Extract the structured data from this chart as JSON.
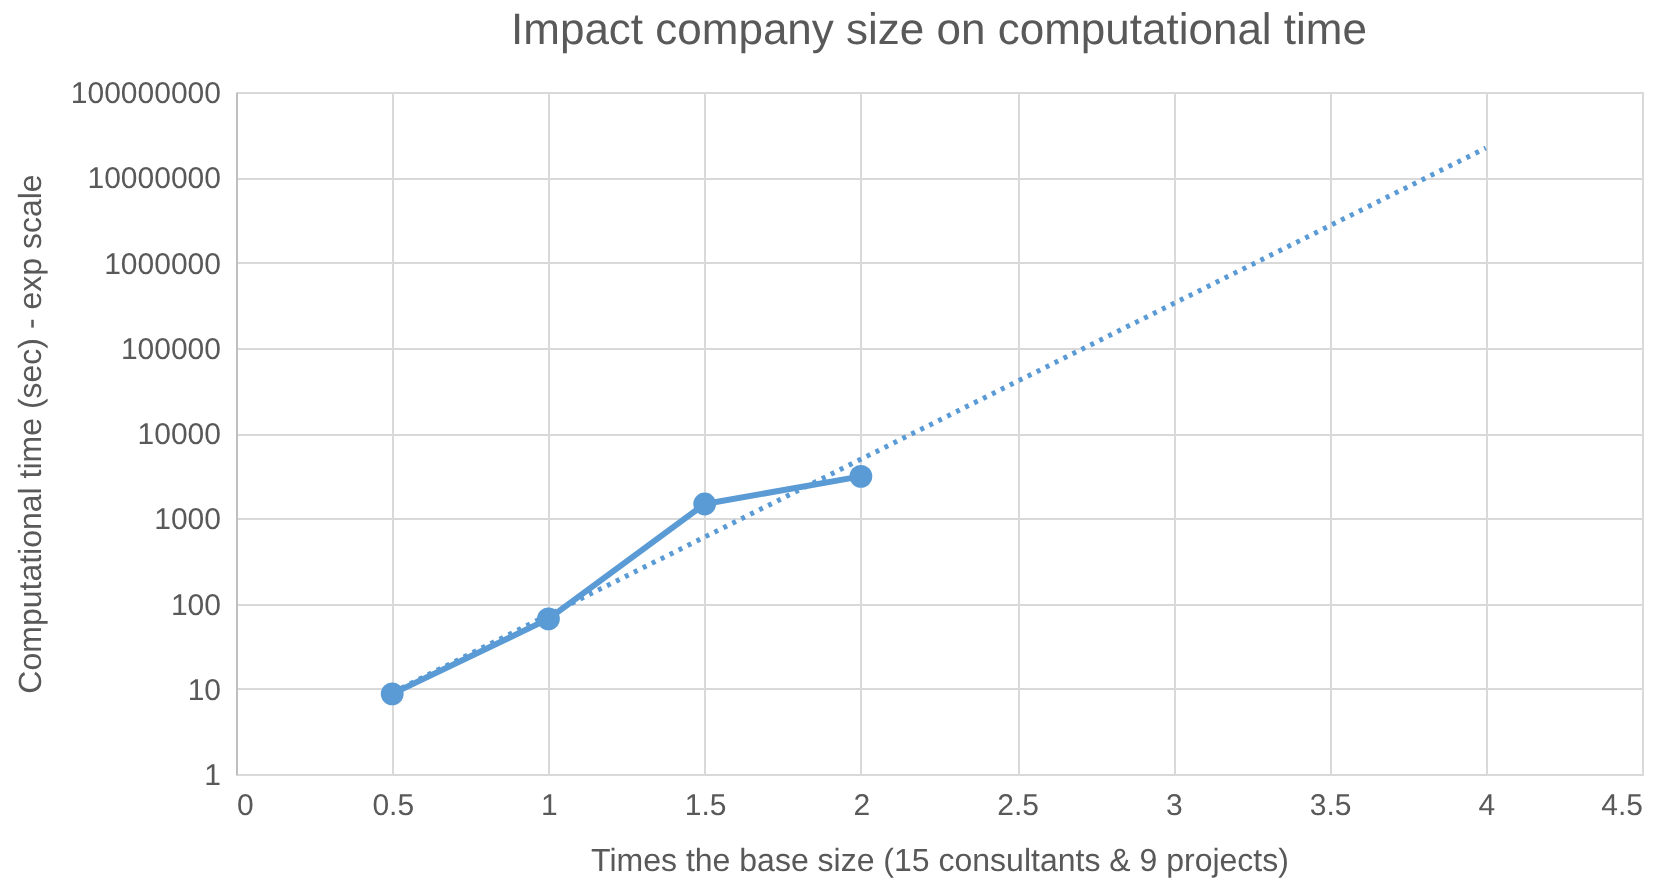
{
  "chart_data": {
    "type": "line",
    "title": "Impact company size on computational time",
    "xlabel": "Times the base size (15 consultants & 9 projects)",
    "ylabel": "Computational time (sec) - exp scale",
    "series": [
      {
        "color": "#5b9bd5",
        "x": [
          0.5,
          1,
          1.5,
          2
        ],
        "values": [
          8.7,
          66,
          1470,
          3100
        ],
        "marker": "circle",
        "line_style": "solid"
      },
      {
        "color": "#5b9bd5",
        "x": [
          0.5,
          4
        ],
        "values": [
          9,
          22000000
        ],
        "line_style": "dotted"
      }
    ],
    "log": "y",
    "xlim": [
      0,
      4.5
    ],
    "xticks": [
      0,
      0.5,
      1,
      1.5,
      2,
      2.5,
      3,
      3.5,
      4,
      4.5
    ],
    "ylim": [
      1,
      100000000
    ],
    "yticks": [
      1,
      10,
      100,
      1000,
      10000,
      100000,
      1000000,
      10000000,
      100000000
    ],
    "grid": true
  }
}
